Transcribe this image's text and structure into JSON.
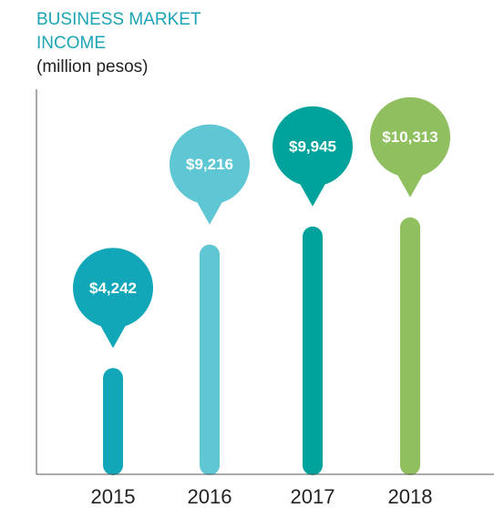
{
  "chart_data": {
    "type": "bar",
    "title": [
      "BUSINESS MARKET",
      "INCOME"
    ],
    "subtitle": "(million pesos)",
    "categories": [
      "2015",
      "2016",
      "2017",
      "2018"
    ],
    "values": [
      4242,
      9216,
      9945,
      10313
    ],
    "value_labels": [
      "$4,242",
      "$9,216",
      "$9,945",
      "$10,313"
    ],
    "colors": [
      "#12a7b8",
      "#5ec7d3",
      "#00a39b",
      "#8fbf5f"
    ],
    "ylim": [
      0,
      11000
    ]
  }
}
